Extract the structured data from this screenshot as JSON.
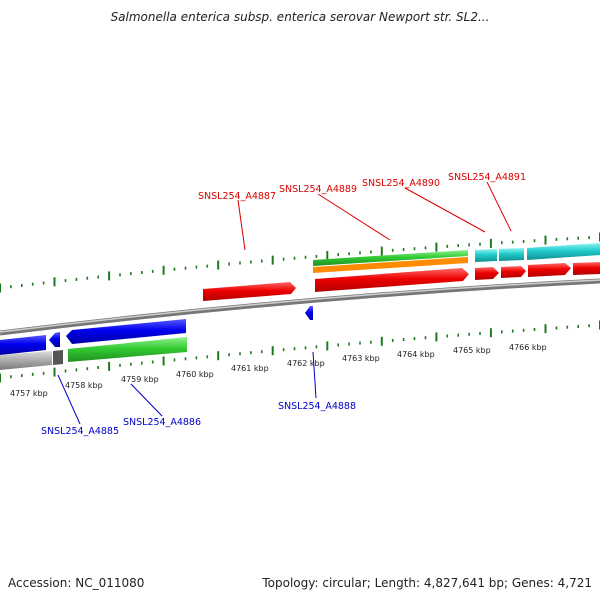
{
  "title": "Salmonella enterica subsp. enterica serovar Newport str. SL2...",
  "footer": {
    "accession": "Accession: NC_011080",
    "summary": "Topology: circular; Length: 4,827,641 bp; Genes: 4,721"
  },
  "colors": {
    "forward_label": "#dd0000",
    "reverse_label": "#0000cc",
    "tick": "#1f7a1f",
    "backbone": "#888888"
  },
  "ticks": [
    "4757 kbp",
    "4758 kbp",
    "4759 kbp",
    "4760 kbp",
    "4761 kbp",
    "4762 kbp",
    "4763 kbp",
    "4764 kbp",
    "4765 kbp",
    "4766 kbp"
  ],
  "gene_labels": {
    "top": [
      "SNSL254_A4887",
      "SNSL254_A4889",
      "SNSL254_A4890",
      "SNSL254_A4891"
    ],
    "bottom": [
      "SNSL254_A4885",
      "SNSL254_A4886",
      "SNSL254_A4888"
    ]
  }
}
